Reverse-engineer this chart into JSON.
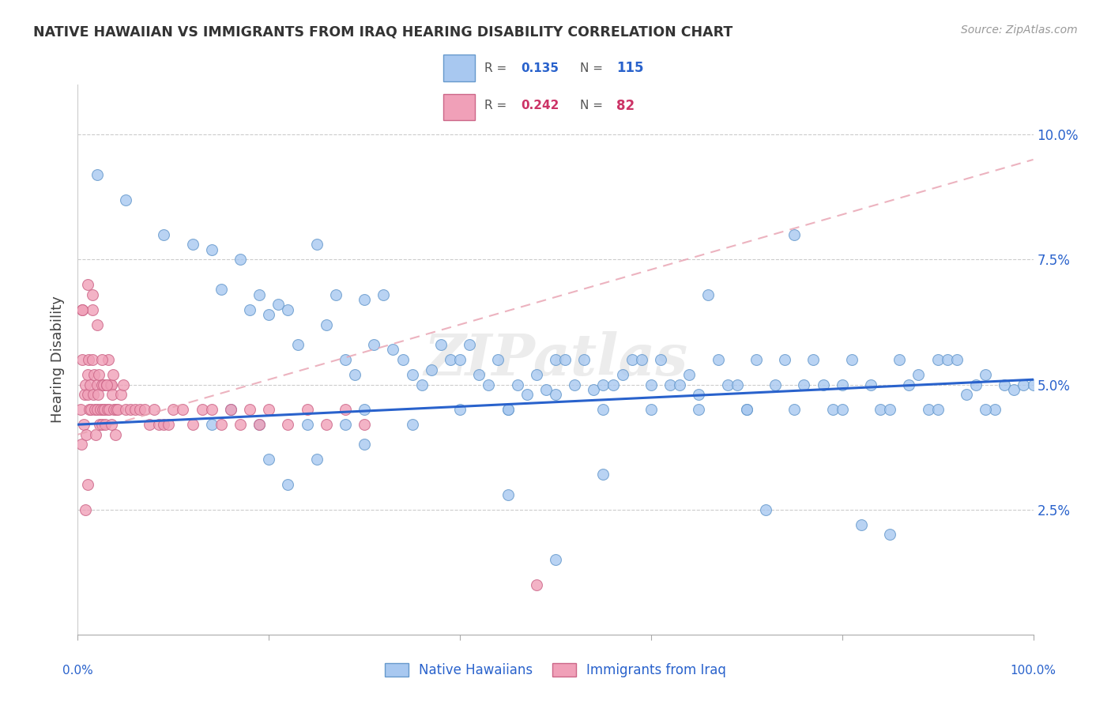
{
  "title": "NATIVE HAWAIIAN VS IMMIGRANTS FROM IRAQ HEARING DISABILITY CORRELATION CHART",
  "source": "Source: ZipAtlas.com",
  "ylabel": "Hearing Disability",
  "xlim": [
    0,
    100
  ],
  "ylim": [
    0,
    11.0
  ],
  "yticks": [
    2.5,
    5.0,
    7.5,
    10.0
  ],
  "ytick_labels": [
    "2.5%",
    "5.0%",
    "7.5%",
    "10.0%"
  ],
  "blue_color": "#a8c8f0",
  "blue_line_color": "#2962cc",
  "blue_edge_color": "#6699cc",
  "pink_color": "#f0a0b8",
  "pink_line_color": "#cc3366",
  "pink_edge_color": "#cc6688",
  "watermark": "ZIPatlas",
  "legend_R_blue": "0.135",
  "legend_N_blue": "115",
  "legend_R_pink": "0.242",
  "legend_N_pink": "82",
  "blue_scatter_x": [
    2,
    5,
    9,
    12,
    14,
    15,
    17,
    18,
    19,
    20,
    21,
    22,
    23,
    25,
    26,
    27,
    28,
    29,
    30,
    31,
    32,
    33,
    34,
    35,
    36,
    37,
    38,
    39,
    40,
    41,
    42,
    43,
    44,
    45,
    46,
    47,
    48,
    49,
    50,
    51,
    52,
    53,
    54,
    55,
    56,
    57,
    58,
    59,
    60,
    61,
    62,
    63,
    64,
    65,
    66,
    67,
    68,
    69,
    70,
    71,
    72,
    73,
    74,
    75,
    76,
    77,
    78,
    79,
    80,
    81,
    82,
    83,
    84,
    85,
    86,
    87,
    88,
    89,
    90,
    91,
    92,
    93,
    94,
    95,
    96,
    97,
    98,
    99,
    100,
    14,
    16,
    19,
    24,
    28,
    30,
    35,
    40,
    45,
    50,
    55,
    60,
    65,
    70,
    75,
    80,
    85,
    90,
    95,
    50,
    45,
    55,
    30,
    25,
    22,
    20
  ],
  "blue_scatter_y": [
    9.2,
    8.7,
    8.0,
    7.8,
    7.7,
    6.9,
    7.5,
    6.5,
    6.8,
    6.4,
    6.6,
    6.5,
    5.8,
    7.8,
    6.2,
    6.8,
    5.5,
    5.2,
    6.7,
    5.8,
    6.8,
    5.7,
    5.5,
    5.2,
    5.0,
    5.3,
    5.8,
    5.5,
    5.5,
    5.8,
    5.2,
    5.0,
    5.5,
    4.5,
    5.0,
    4.8,
    5.2,
    4.9,
    5.5,
    5.5,
    5.0,
    5.5,
    4.9,
    5.0,
    5.0,
    5.2,
    5.5,
    5.5,
    5.0,
    5.5,
    5.0,
    5.0,
    5.2,
    4.8,
    6.8,
    5.5,
    5.0,
    5.0,
    4.5,
    5.5,
    2.5,
    5.0,
    5.5,
    8.0,
    5.0,
    5.5,
    5.0,
    4.5,
    5.0,
    5.5,
    2.2,
    5.0,
    4.5,
    2.0,
    5.5,
    5.0,
    5.2,
    4.5,
    5.5,
    5.5,
    5.5,
    4.8,
    5.0,
    5.2,
    4.5,
    5.0,
    4.9,
    5.0,
    5.0,
    4.2,
    4.5,
    4.2,
    4.2,
    4.2,
    4.5,
    4.2,
    4.5,
    4.5,
    4.8,
    4.5,
    4.5,
    4.5,
    4.5,
    4.5,
    4.5,
    4.5,
    4.5,
    4.5,
    1.5,
    2.8,
    3.2,
    3.8,
    3.5,
    3.0,
    3.5
  ],
  "pink_scatter_x": [
    0.3,
    0.4,
    0.5,
    0.5,
    0.6,
    0.7,
    0.8,
    0.9,
    1.0,
    1.0,
    1.1,
    1.2,
    1.3,
    1.4,
    1.5,
    1.5,
    1.6,
    1.7,
    1.8,
    1.9,
    2.0,
    2.0,
    2.1,
    2.2,
    2.3,
    2.4,
    2.5,
    2.5,
    2.6,
    2.7,
    2.8,
    2.9,
    3.0,
    3.1,
    3.2,
    3.3,
    3.4,
    3.5,
    3.5,
    3.6,
    3.7,
    3.8,
    3.9,
    4.0,
    4.2,
    4.5,
    4.8,
    5.0,
    5.5,
    6.0,
    6.5,
    7.0,
    7.5,
    8.0,
    8.5,
    9.0,
    9.5,
    10.0,
    11.0,
    12.0,
    13.0,
    14.0,
    15.0,
    16.0,
    17.0,
    18.0,
    19.0,
    20.0,
    22.0,
    24.0,
    26.0,
    28.0,
    30.0,
    1.0,
    1.5,
    2.0,
    2.5,
    3.0,
    0.5,
    1.0,
    0.8,
    48.0
  ],
  "pink_scatter_y": [
    4.5,
    3.8,
    5.5,
    6.5,
    4.2,
    4.8,
    5.0,
    4.0,
    5.2,
    4.8,
    5.5,
    4.5,
    5.0,
    4.5,
    5.5,
    6.5,
    4.8,
    5.2,
    4.5,
    4.0,
    5.0,
    4.5,
    4.8,
    5.2,
    4.2,
    4.5,
    5.0,
    4.2,
    4.5,
    5.0,
    4.5,
    4.2,
    5.0,
    4.5,
    5.5,
    4.5,
    5.0,
    4.2,
    5.0,
    4.8,
    5.2,
    4.5,
    4.0,
    4.5,
    4.5,
    4.8,
    5.0,
    4.5,
    4.5,
    4.5,
    4.5,
    4.5,
    4.2,
    4.5,
    4.2,
    4.2,
    4.2,
    4.5,
    4.5,
    4.2,
    4.5,
    4.5,
    4.2,
    4.5,
    4.2,
    4.5,
    4.2,
    4.5,
    4.2,
    4.5,
    4.2,
    4.5,
    4.2,
    7.0,
    6.8,
    6.2,
    5.5,
    5.0,
    6.5,
    3.0,
    2.5,
    1.0
  ]
}
